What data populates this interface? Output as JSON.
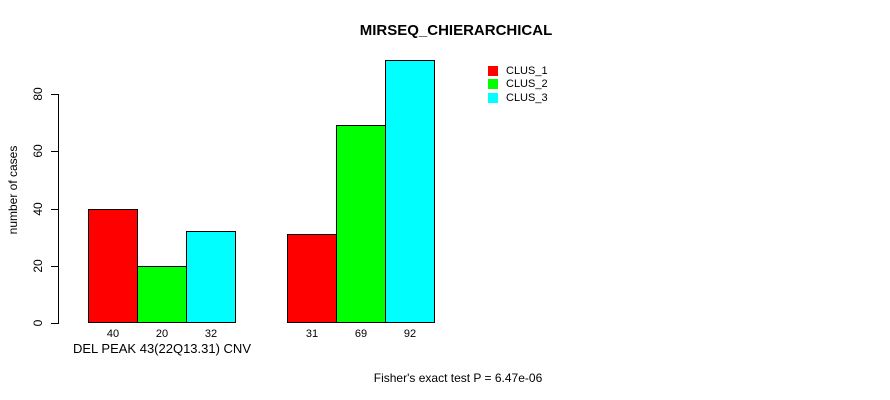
{
  "figure": {
    "background": "#FFFFFF",
    "axis_color": "#000000"
  },
  "chart_data": {
    "type": "bar",
    "title": "MIRSEQ_CHIERARCHICAL",
    "ylabel": "number of cases",
    "ylim": [
      0,
      92
    ],
    "yticks": [
      0,
      20,
      40,
      60,
      80
    ],
    "grid": false,
    "legend_position": "top-right",
    "series": [
      {
        "name": "CLUS_1",
        "color": "#FF0000"
      },
      {
        "name": "CLUS_2",
        "color": "#00FF00"
      },
      {
        "name": "CLUS_3",
        "color": "#00FFFF"
      }
    ],
    "groups": [
      {
        "label": "DEL PEAK 43(22Q13.31) CNV",
        "values": [
          40,
          20,
          32
        ]
      },
      {
        "label": "",
        "values": [
          31,
          69,
          92
        ]
      }
    ],
    "annotation": "Fisher's exact test P = 6.47e-06"
  }
}
